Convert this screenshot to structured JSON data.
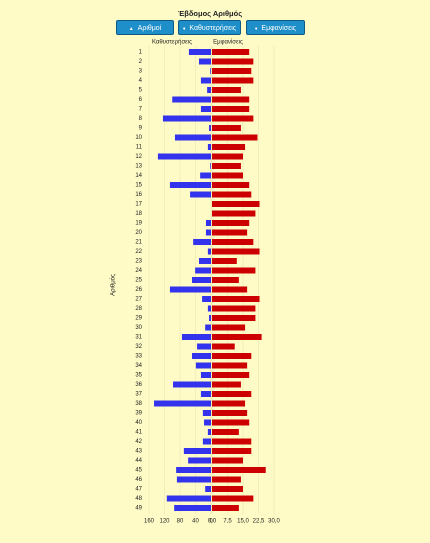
{
  "buttons": [
    "Αριθμοί",
    "Καθυστερήσεις",
    "Εμφανίσεις"
  ],
  "chart_data": {
    "type": "diverging_bar",
    "title": "Έβδομος Αριθμός",
    "ylabel": "Αριθμός",
    "categories": [
      "1",
      "2",
      "3",
      "4",
      "5",
      "6",
      "7",
      "8",
      "9",
      "10",
      "11",
      "12",
      "13",
      "14",
      "15",
      "16",
      "17",
      "18",
      "19",
      "20",
      "21",
      "22",
      "23",
      "24",
      "25",
      "26",
      "27",
      "28",
      "29",
      "30",
      "31",
      "32",
      "33",
      "34",
      "35",
      "36",
      "37",
      "38",
      "39",
      "40",
      "41",
      "42",
      "43",
      "44",
      "45",
      "46",
      "47",
      "48",
      "49"
    ],
    "series": [
      {
        "name": "Καθυστερήσεις",
        "color": "#3333ee",
        "axis": "x",
        "values": [
          57,
          31,
          2,
          26,
          10,
          100,
          26,
          124,
          5,
          93,
          8,
          137,
          2,
          28,
          106,
          54,
          0,
          0,
          13,
          13,
          46,
          8,
          31,
          41,
          49,
          106,
          23,
          8,
          5,
          15,
          75,
          36,
          49,
          39,
          26,
          98,
          26,
          147,
          21,
          18,
          8,
          21,
          70,
          59,
          90,
          88,
          15,
          114,
          95
        ]
      },
      {
        "name": "Εμφανίσεις",
        "color": "#cc0000",
        "axis": "x2",
        "values": [
          18,
          20,
          19,
          20,
          14,
          18,
          18,
          20,
          14,
          22,
          16,
          15,
          14,
          15,
          18,
          19,
          23,
          21,
          18,
          17,
          20,
          23,
          12,
          21,
          13,
          17,
          23,
          21,
          21,
          16,
          24,
          11,
          19,
          17,
          18,
          14,
          19,
          16,
          17,
          18,
          13,
          19,
          19,
          15,
          26,
          14,
          15,
          20,
          13
        ]
      }
    ],
    "xlim": [
      160,
      0
    ],
    "xticks": [
      160,
      120,
      80,
      40,
      0
    ],
    "x2lim": [
      0,
      30
    ],
    "x2ticks": [
      {
        "value": 0,
        "label": "0,0"
      },
      {
        "value": 7.5,
        "label": "7,5"
      },
      {
        "value": 15,
        "label": "15,0"
      },
      {
        "value": 22.5,
        "label": "22,5"
      },
      {
        "value": 30,
        "label": "30,0"
      }
    ],
    "grid": true
  }
}
